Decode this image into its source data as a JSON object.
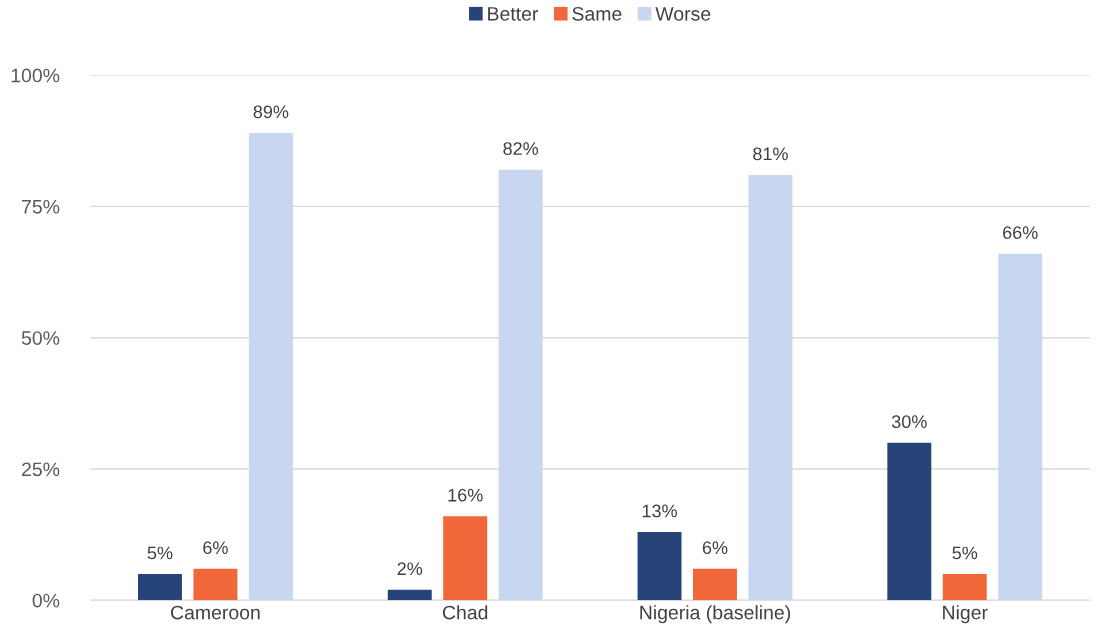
{
  "chart_data": {
    "type": "bar",
    "categories": [
      "Cameroon",
      "Chad",
      "Nigeria (baseline)",
      "Niger"
    ],
    "series": [
      {
        "name": "Better",
        "color": "#264478",
        "values": [
          5,
          2,
          13,
          30
        ],
        "value_labels": [
          "5%",
          "2%",
          "13%",
          "30%"
        ]
      },
      {
        "name": "Same",
        "color": "#f0673a",
        "values": [
          6,
          16,
          6,
          5
        ],
        "value_labels": [
          "6%",
          "16%",
          "6%",
          "5%"
        ]
      },
      {
        "name": "Worse",
        "color": "#c9d6f0",
        "values": [
          89,
          82,
          81,
          66
        ],
        "value_labels": [
          "89%",
          "82%",
          "81%",
          "66%"
        ]
      }
    ],
    "ylim": [
      0,
      100
    ],
    "yticks": [
      {
        "value": 0,
        "label": "0%"
      },
      {
        "value": 25,
        "label": "25%"
      },
      {
        "value": 50,
        "label": "50%"
      },
      {
        "value": 75,
        "label": "75%"
      },
      {
        "value": 100,
        "label": "100%"
      }
    ],
    "grid": "y",
    "legend": "top"
  }
}
